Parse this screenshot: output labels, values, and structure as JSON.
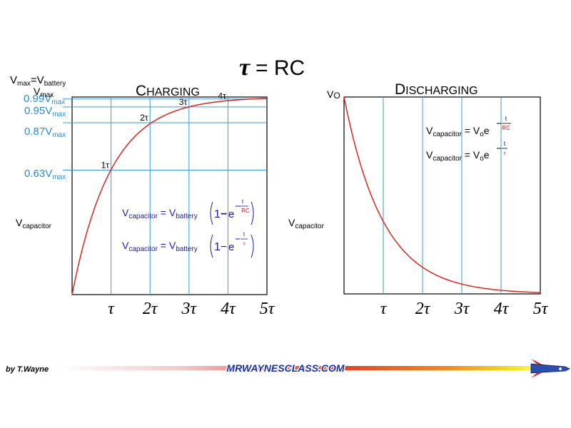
{
  "title": {
    "symbol": "τ",
    "rest": " = RC"
  },
  "colors": {
    "curve": "#d9261c",
    "grid": "#3a9ad9",
    "level_text": "#2a8ad4",
    "formula_blue": "#1a1aa8",
    "formula_red": "#cc1111"
  },
  "footer": {
    "author": "by T.Wayne",
    "site": "MRWAYNESCLASS.COM",
    "rocket_icon": "rocket-icon"
  },
  "chart_data": [
    {
      "type": "line",
      "title": "CHARGING",
      "title_parts": [
        "C",
        "HARGING"
      ],
      "ylabel": {
        "main": "V",
        "sub": "capacitor"
      },
      "x": [
        0,
        1,
        2,
        3,
        4,
        5
      ],
      "xlim": [
        0,
        5
      ],
      "ylim": [
        0,
        1
      ],
      "xticks": [
        "τ",
        "2τ",
        "3τ",
        "4τ",
        "5τ"
      ],
      "vmax_label": {
        "a": "V",
        "a_sub": "max",
        "eq": "=V",
        "b_sub": "battery"
      },
      "vmax_second": {
        "main": "V",
        "sub": "max"
      },
      "levels": [
        {
          "prefix": "0.99V",
          "sub": "max",
          "value": 0.99
        },
        {
          "prefix": "0.95V",
          "sub": "max",
          "value": 0.95
        },
        {
          "prefix": "0.87V",
          "sub": "max",
          "value": 0.87
        },
        {
          "prefix": "0.63V",
          "sub": "max",
          "value": 0.63
        }
      ],
      "point_labels": [
        {
          "label": "1τ",
          "x": 1,
          "y": 0.63
        },
        {
          "label": "2τ",
          "x": 2,
          "y": 0.87
        },
        {
          "label": "3τ",
          "x": 3,
          "y": 0.95
        },
        {
          "label": "4τ",
          "x": 4,
          "y": 0.98
        }
      ],
      "series": [
        {
          "function": "1 - e^(-t/τ)",
          "values": [
            0,
            0.63,
            0.87,
            0.95,
            0.98,
            0.99
          ]
        }
      ],
      "formulas": [
        {
          "lhs": "V",
          "lhs_sub": "capacitor",
          "eq": " = V",
          "rhs_sub": "battery",
          "one": "1",
          "minus": "−",
          "e": "e",
          "exp_num": "t",
          "exp_den": "RC"
        },
        {
          "lhs": "V",
          "lhs_sub": "capacitor",
          "eq": " = V",
          "rhs_sub": "battery",
          "one": "1",
          "minus": "−",
          "e": "e",
          "exp_num": "t",
          "exp_den": "τ"
        }
      ]
    },
    {
      "type": "line",
      "title": "DISCHARGING",
      "title_parts": [
        "D",
        "ISCHARGING"
      ],
      "ylabel": {
        "main": "V",
        "sub": "capacitor"
      },
      "x": [
        0,
        1,
        2,
        3,
        4,
        5
      ],
      "xlim": [
        0,
        5
      ],
      "ylim": [
        0,
        1
      ],
      "xticks": [
        "τ",
        "2τ",
        "3τ",
        "4τ",
        "5τ"
      ],
      "v0_label": {
        "main": "V",
        "sub": "O"
      },
      "series": [
        {
          "function": "e^(-t/τ)",
          "values": [
            1,
            0.37,
            0.14,
            0.05,
            0.02,
            0.01
          ]
        }
      ],
      "formulas": [
        {
          "lhs": "V",
          "lhs_sub": "capacitor",
          "eq": " = V",
          "rhs_sub": "o",
          "e": "e",
          "exp_num": "t",
          "exp_den": "RC"
        },
        {
          "lhs": "V",
          "lhs_sub": "capacitor",
          "eq": " = V",
          "rhs_sub": "o",
          "e": "e",
          "exp_num": "t",
          "exp_den": "τ"
        }
      ]
    }
  ]
}
